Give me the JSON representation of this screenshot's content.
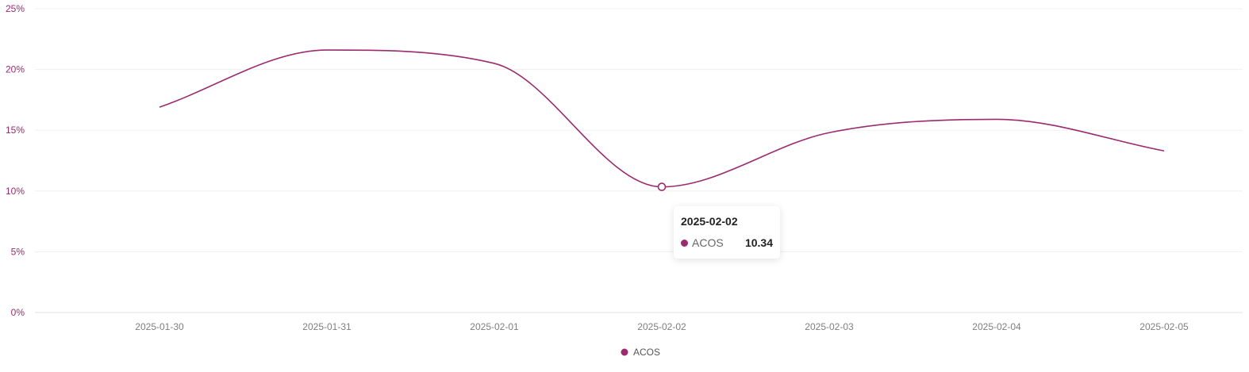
{
  "chart_data": {
    "type": "line",
    "categories": [
      "2025-01-30",
      "2025-01-31",
      "2025-02-01",
      "2025-02-02",
      "2025-02-03",
      "2025-02-04",
      "2025-02-05"
    ],
    "series": [
      {
        "name": "ACOS",
        "values": [
          16.9,
          21.6,
          20.5,
          10.34,
          14.8,
          15.9,
          13.3
        ],
        "color": "#9b2a6f"
      }
    ],
    "ylim": [
      0,
      25
    ],
    "yticks": [
      0,
      5,
      10,
      15,
      20,
      25
    ],
    "ytick_labels": [
      "0%",
      "5%",
      "10%",
      "15%",
      "20%",
      "25%"
    ],
    "smooth": true,
    "grid": true,
    "legend": "bottom-center",
    "title": "",
    "xlabel": "",
    "ylabel": ""
  },
  "tooltip": {
    "title": "2025-02-02",
    "series_name": "ACOS",
    "value": "10.34",
    "category_index": 3
  },
  "colors": {
    "series": "#9b2a6f",
    "grid": "#f0f0f0",
    "axis": "#e0e0e0"
  }
}
